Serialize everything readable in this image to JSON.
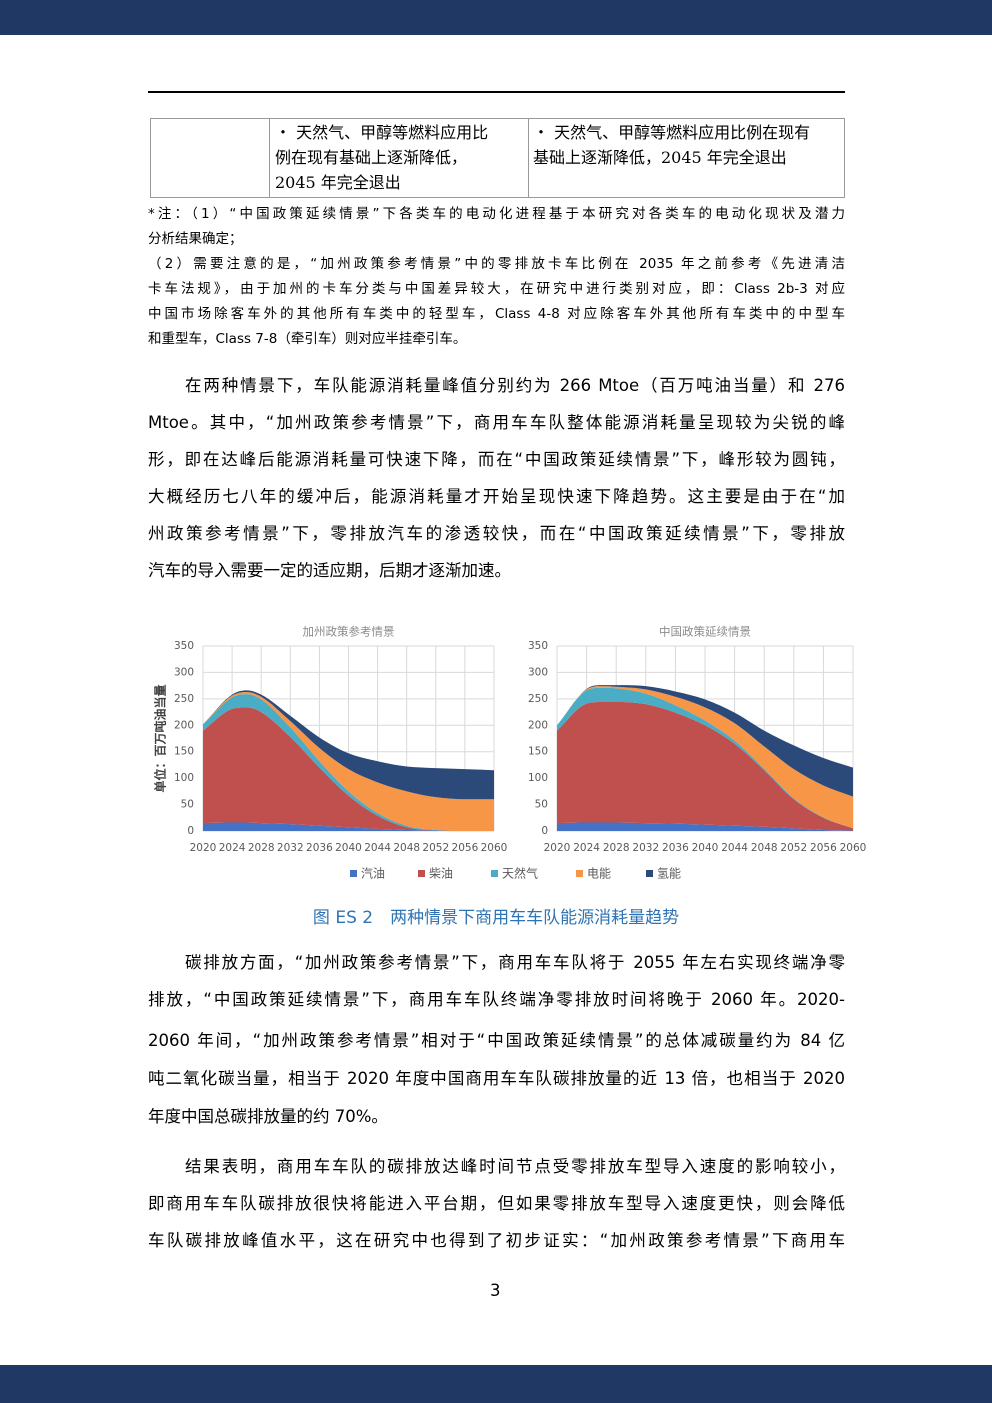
{
  "table": {
    "rows": [
      [
        [
          "・ 天然气、甲醇等燃料应用比",
          "例在现有基础上逐渐降低，",
          "2045 年完全退出"
        ],
        [
          "・ 天然气、甲醇等燃料应用比例在现有",
          "基础上逐渐降低，2045 年完全退出"
        ]
      ]
    ]
  },
  "notes": [
    "*注：（1）“中国政策延续情景”下各类车的电动化进程基于本研究对各类车的电动化现状及潜力",
    "分析结果确定；",
    "（2）需要注意的是，“加州政策参考情景”中的零排放卡车比例在 2035 年之前参考《先进清洁",
    "卡车法规》，由于加州的卡车分类与中国差异较大，在研究中进行类别对应，即：Class 2b-3 对应",
    "中国市场除客车外的其他所有车类中的轻型车，Class 4-8 对应除客车外其他所有车类中的中型车",
    "和重型车，Class 7-8（牵引车）则对应半挂牵引车。"
  ],
  "paragraphs": [
    [
      "在两种情景下，车队能源消耗量峰值分别约为 266 Mtoe（百万吨油当量）和 276",
      "Mtoe。其中，“加州政策参考情景”下，商用车车队整体能源消耗量呈现较为尖锐的峰",
      "形，即在达峰后能源消耗量可快速下降，而在“中国政策延续情景”下，峰形较为圆钝，",
      "大概经历七八年的缓冲后，能源消耗量才开始呈现快速下降趋势。这主要是由于在“加",
      "州政策参考情景”下，零排放汽车的渗透较快，而在“中国政策延续情景”下，零排放",
      "汽车的导入需要一定的适应期，后期才逐渐加速。"
    ],
    [
      "碳排放方面，“加州政策参考情景”下，商用车车队将于 2055 年左右实现终端净零",
      "排放，“中国政策延续情景”下，商用车车队终端净零排放时间将晚于 2060 年。2020-",
      "2060 年间，“加州政策参考情景”相对于“中国政策延续情景”的总体减碳量约为 84 亿",
      "吨二氧化碳当量，相当于 2020 年度中国商用车车队碳排放量的近 13 倍，也相当于 2020",
      "年度中国总碳排放量的约 70%。"
    ],
    [
      "结果表明，商用车车队的碳排放达峰时间节点受零排放车型导入速度的影响较小，",
      "即商用车车队碳排放很快将能进入平台期，但如果零排放车型导入速度更快，则会降低",
      "车队碳排放峰值水平，这在研究中也得到了初步证实：“加州政策参考情景”下商用车"
    ]
  ],
  "chart_data": [
    {
      "type": "stacked_area",
      "title": "加州政策参考情景",
      "y_label": "单位：百万吨油当量",
      "x": [
        2020,
        2024,
        2026,
        2028,
        2032,
        2036,
        2040,
        2044,
        2048,
        2052,
        2056,
        2060
      ],
      "xlim": [
        2020,
        2060
      ],
      "xticks": [
        2020,
        2024,
        2028,
        2032,
        2036,
        2040,
        2044,
        2048,
        2052,
        2056,
        2060
      ],
      "ylim": [
        0,
        350
      ],
      "yticks": [
        0,
        50,
        100,
        150,
        200,
        250,
        300,
        350
      ],
      "grid": true,
      "series": [
        {
          "name": "汽油",
          "color": "#4472c4",
          "values": [
            15,
            16,
            16,
            15,
            13,
            10,
            7,
            4,
            2,
            1,
            0,
            0
          ]
        },
        {
          "name": "柴油",
          "color": "#c0504d",
          "values": [
            175,
            215,
            218,
            210,
            165,
            110,
            60,
            25,
            5,
            0,
            0,
            0
          ]
        },
        {
          "name": "天然气",
          "color": "#4bacc6",
          "values": [
            12,
            22,
            25,
            24,
            18,
            12,
            8,
            5,
            3,
            1,
            0,
            0
          ]
        },
        {
          "name": "电能",
          "color": "#f79646",
          "values": [
            0,
            3,
            4,
            5,
            12,
            25,
            42,
            58,
            65,
            62,
            60,
            60
          ]
        },
        {
          "name": "氢能",
          "color": "#2b4a7a",
          "values": [
            0,
            2,
            3,
            4,
            10,
            20,
            30,
            40,
            47,
            55,
            57,
            55
          ]
        }
      ]
    },
    {
      "type": "stacked_area",
      "title": "中国政策延续情景",
      "x": [
        2020,
        2024,
        2026,
        2028,
        2032,
        2036,
        2040,
        2044,
        2048,
        2052,
        2056,
        2060
      ],
      "xlim": [
        2020,
        2060
      ],
      "xticks": [
        2020,
        2024,
        2028,
        2032,
        2036,
        2040,
        2044,
        2048,
        2052,
        2056,
        2060
      ],
      "ylim": [
        0,
        350
      ],
      "yticks": [
        0,
        50,
        100,
        150,
        200,
        250,
        300,
        350
      ],
      "grid": true,
      "series": [
        {
          "color": "#4472c4",
          "values": [
            15,
            16,
            16,
            16,
            15,
            14,
            12,
            10,
            8,
            5,
            2,
            1
          ]
        },
        {
          "color": "#c0504d",
          "values": [
            175,
            225,
            228,
            228,
            225,
            210,
            188,
            155,
            107,
            55,
            23,
            4
          ]
        },
        {
          "color": "#4bacc6",
          "values": [
            10,
            25,
            27,
            26,
            20,
            14,
            9,
            6,
            3,
            2,
            1,
            0
          ]
        },
        {
          "color": "#f79646",
          "values": [
            0,
            2,
            3,
            3,
            8,
            16,
            25,
            33,
            42,
            55,
            60,
            60
          ]
        },
        {
          "color": "#2b4a7a",
          "values": [
            0,
            1,
            2,
            3,
            6,
            10,
            15,
            20,
            30,
            45,
            52,
            55
          ]
        }
      ]
    }
  ],
  "figure_caption": "图 ES 2　两种情景下商用车车队能源消耗量趋势",
  "page_number": "3"
}
